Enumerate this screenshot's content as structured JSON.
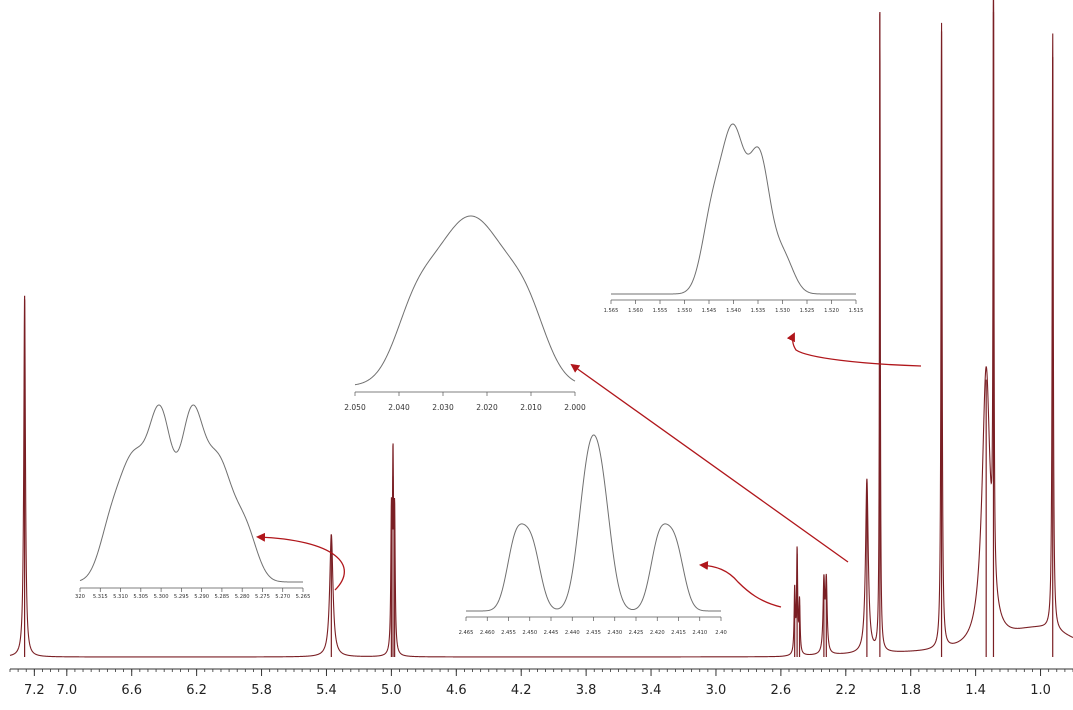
{
  "chart_data": {
    "type": "line",
    "title": "",
    "xlabel": "",
    "ylabel": "",
    "x_axis_reversed": true,
    "xlim": [
      7.35,
      0.8
    ],
    "main_axis": {
      "major_ticks": [
        "7.2",
        "7.0",
        "6.6",
        "6.2",
        "5.8",
        "5.4",
        "5.0",
        "4.6",
        "4.2",
        "3.8",
        "3.4",
        "3.0",
        "2.6",
        "2.2",
        "1.8",
        "1.4",
        "1.0"
      ],
      "minor_step": 0.05
    },
    "main_spectrum": {
      "name": "",
      "baseline_note": "",
      "peaks": [
        {
          "shift": 7.26,
          "height": 0.56,
          "width": 0.006
        },
        {
          "shift": 5.37,
          "height": 0.19,
          "width": 0.012
        },
        {
          "shift": 5.0,
          "height": 0.2,
          "width": 0.004
        },
        {
          "shift": 4.99,
          "height": 0.28,
          "width": 0.004
        },
        {
          "shift": 4.98,
          "height": 0.2,
          "width": 0.004
        },
        {
          "shift": 2.515,
          "height": 0.1,
          "width": 0.004
        },
        {
          "shift": 2.5,
          "height": 0.16,
          "width": 0.004
        },
        {
          "shift": 2.485,
          "height": 0.08,
          "width": 0.004
        },
        {
          "shift": 2.335,
          "height": 0.11,
          "width": 0.006
        },
        {
          "shift": 2.32,
          "height": 0.11,
          "width": 0.006
        },
        {
          "shift": 2.07,
          "height": 0.27,
          "width": 0.01
        },
        {
          "shift": 1.99,
          "height": 1.0,
          "width": 0.003
        },
        {
          "shift": 1.61,
          "height": 0.97,
          "width": 0.004
        },
        {
          "shift": 1.335,
          "height": 0.43,
          "width": 0.03
        },
        {
          "shift": 1.29,
          "height": 1.0,
          "width": 0.003
        },
        {
          "shift": 0.925,
          "height": 0.93,
          "width": 0.004
        }
      ]
    },
    "insets": [
      {
        "id": "inset-5.30",
        "ticks": [
          "320",
          "5.315",
          "5.310",
          "5.305",
          "5.300",
          "5.295",
          "5.290",
          "5.285",
          "5.280",
          "5.275",
          "5.270",
          "5.265"
        ],
        "xlim": [
          5.32,
          5.262
        ],
        "peaks": [
          {
            "x": 5.306,
            "h": 0.7,
            "w": 0.0035
          },
          {
            "x": 5.299,
            "h": 0.95,
            "w": 0.003
          },
          {
            "x": 5.291,
            "h": 0.95,
            "w": 0.003
          },
          {
            "x": 5.284,
            "h": 0.7,
            "w": 0.0035
          },
          {
            "x": 5.312,
            "h": 0.3,
            "w": 0.003
          },
          {
            "x": 5.277,
            "h": 0.3,
            "w": 0.003
          }
        ]
      },
      {
        "id": "inset-2.02",
        "ticks": [
          "2.050",
          "2.040",
          "2.030",
          "2.020",
          "2.010",
          "2.000"
        ],
        "xlim": [
          2.055,
          1.998
        ],
        "peaks": [
          {
            "x": 2.03,
            "h": 0.8,
            "w": 0.008
          },
          {
            "x": 2.02,
            "h": 0.8,
            "w": 0.008
          },
          {
            "x": 2.04,
            "h": 0.35,
            "w": 0.005
          },
          {
            "x": 2.01,
            "h": 0.35,
            "w": 0.005
          }
        ]
      },
      {
        "id": "inset-2.43",
        "ticks": [
          "2.465",
          "2.460",
          "2.455",
          "2.450",
          "2.445",
          "2.440",
          "2.435",
          "2.430",
          "2.425",
          "2.420",
          "2.415",
          "2.410",
          "2.40"
        ],
        "xlim": [
          2.468,
          2.404
        ],
        "peaks": [
          {
            "x": 2.4555,
            "h": 0.55,
            "w": 0.0022
          },
          {
            "x": 2.4515,
            "h": 0.5,
            "w": 0.0022
          },
          {
            "x": 2.4375,
            "h": 0.95,
            "w": 0.0025
          },
          {
            "x": 2.434,
            "h": 0.85,
            "w": 0.0025
          },
          {
            "x": 2.4195,
            "h": 0.55,
            "w": 0.0022
          },
          {
            "x": 2.4155,
            "h": 0.5,
            "w": 0.0022
          }
        ]
      },
      {
        "id": "inset-1.54",
        "ticks": [
          "1.565",
          "1.560",
          "1.555",
          "1.550",
          "1.545",
          "1.540",
          "1.535",
          "1.530",
          "1.525",
          "1.520",
          "1.515"
        ],
        "xlim": [
          1.566,
          1.514
        ],
        "peaks": [
          {
            "x": 1.5445,
            "h": 0.45,
            "w": 0.0022
          },
          {
            "x": 1.54,
            "h": 0.92,
            "w": 0.0024
          },
          {
            "x": 1.5345,
            "h": 0.78,
            "w": 0.0022
          },
          {
            "x": 1.5295,
            "h": 0.22,
            "w": 0.0022
          }
        ]
      }
    ],
    "arrows": [
      {
        "id": "arrow-to-inset-5.30"
      },
      {
        "id": "arrow-to-inset-2.43"
      },
      {
        "id": "arrow-to-inset-2.02"
      },
      {
        "id": "arrow-to-inset-1.54"
      }
    ],
    "colors": {
      "spectrum": "#7a1f24",
      "inset_line": "#707070",
      "arrow": "#b0161b",
      "axis": "#333333"
    }
  }
}
